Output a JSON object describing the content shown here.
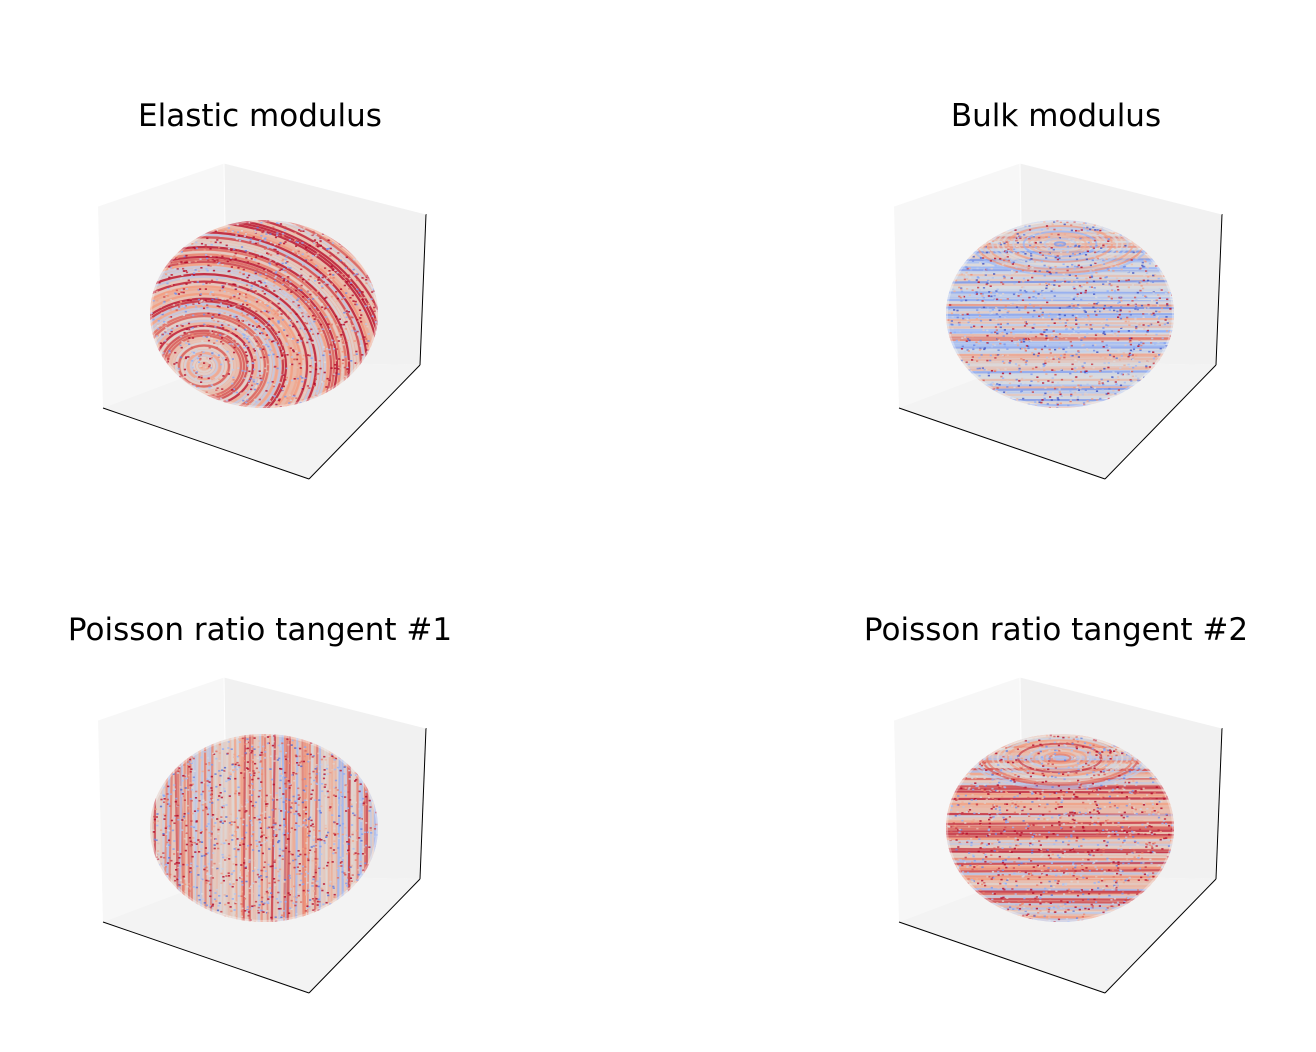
{
  "figure": {
    "background": "#ffffff"
  },
  "chart_data": [
    {
      "type": "3d-surface",
      "title": "Elastic modulus",
      "surface": "sphere",
      "colormap": "coolwarm",
      "axes_ticks": "hidden",
      "pattern": "bands-tilted",
      "tint": 0.35
    },
    {
      "type": "3d-surface",
      "title": "Bulk modulus",
      "surface": "sphere",
      "colormap": "coolwarm",
      "axes_ticks": "hidden",
      "pattern": "bands-horizontal",
      "tint": -0.05
    },
    {
      "type": "3d-surface",
      "title": "Poisson ratio tangent #1",
      "surface": "sphere",
      "colormap": "coolwarm",
      "axes_ticks": "hidden",
      "pattern": "stripes-vertical",
      "tint": 0.2
    },
    {
      "type": "3d-surface",
      "title": "Poisson ratio tangent #2",
      "surface": "sphere",
      "colormap": "coolwarm",
      "axes_ticks": "hidden",
      "pattern": "bands-horizontal",
      "tint": 0.3
    }
  ]
}
